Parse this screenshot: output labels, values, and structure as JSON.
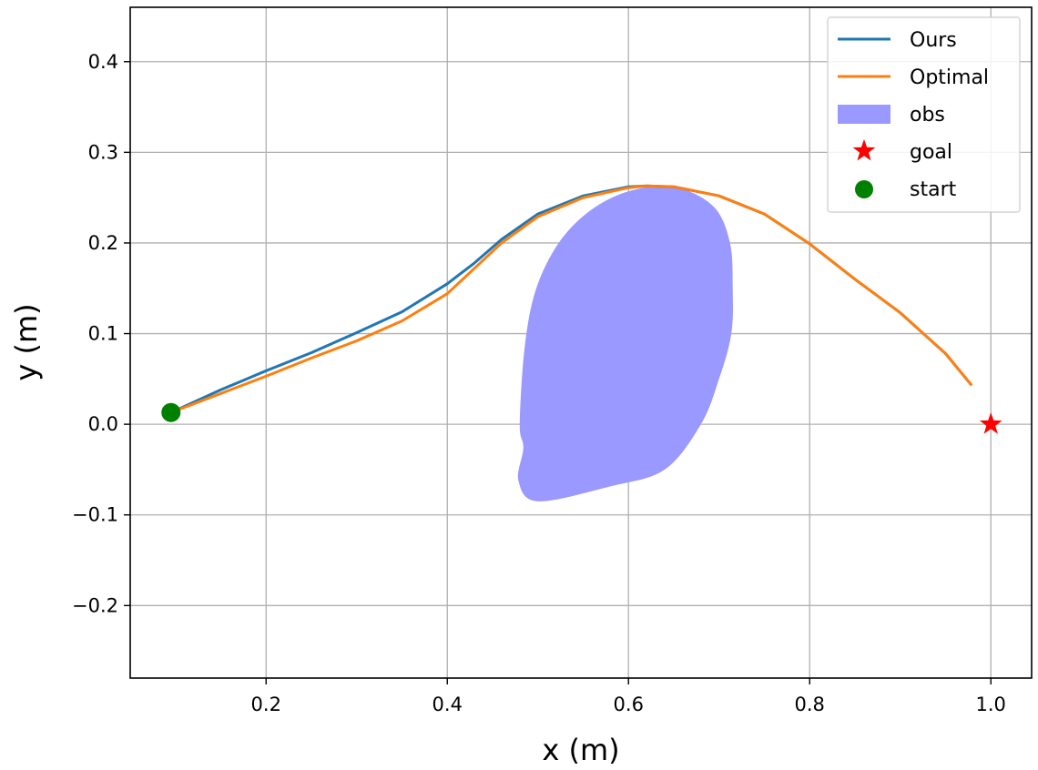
{
  "chart_data": {
    "type": "line",
    "xlabel": "x (m)",
    "ylabel": "y (m)",
    "xlim": [
      0.05,
      1.045
    ],
    "ylim": [
      -0.28,
      0.46
    ],
    "xticks": [
      0.2,
      0.4,
      0.6,
      0.8,
      1.0
    ],
    "xtick_labels": [
      "0.2",
      "0.4",
      "0.6",
      "0.8",
      "1.0"
    ],
    "yticks": [
      -0.2,
      -0.1,
      0.0,
      0.1,
      0.2,
      0.3,
      0.4
    ],
    "ytick_labels": [
      "−0.2",
      "−0.1",
      "0.0",
      "0.1",
      "0.2",
      "0.3",
      "0.4"
    ],
    "grid": true,
    "legend_position": "top-right",
    "series": [
      {
        "name": "Ours",
        "color": "#1f77b4",
        "points": [
          [
            0.095,
            0.013
          ],
          [
            0.15,
            0.038
          ],
          [
            0.2,
            0.059
          ],
          [
            0.25,
            0.079
          ],
          [
            0.3,
            0.101
          ],
          [
            0.35,
            0.124
          ],
          [
            0.4,
            0.155
          ],
          [
            0.43,
            0.178
          ],
          [
            0.46,
            0.204
          ],
          [
            0.5,
            0.232
          ],
          [
            0.55,
            0.252
          ],
          [
            0.6,
            0.262
          ],
          [
            0.62,
            0.263
          ],
          [
            0.65,
            0.262
          ],
          [
            0.7,
            0.252
          ],
          [
            0.75,
            0.232
          ],
          [
            0.8,
            0.199
          ],
          [
            0.85,
            0.16
          ],
          [
            0.9,
            0.123
          ],
          [
            0.95,
            0.078
          ],
          [
            0.978,
            0.044
          ]
        ]
      },
      {
        "name": "Optimal",
        "color": "#ff7f0e",
        "points": [
          [
            0.095,
            0.013
          ],
          [
            0.15,
            0.034
          ],
          [
            0.2,
            0.053
          ],
          [
            0.25,
            0.073
          ],
          [
            0.3,
            0.092
          ],
          [
            0.35,
            0.114
          ],
          [
            0.4,
            0.144
          ],
          [
            0.43,
            0.172
          ],
          [
            0.46,
            0.2
          ],
          [
            0.5,
            0.229
          ],
          [
            0.55,
            0.25
          ],
          [
            0.6,
            0.261
          ],
          [
            0.62,
            0.263
          ],
          [
            0.65,
            0.262
          ],
          [
            0.7,
            0.252
          ],
          [
            0.75,
            0.232
          ],
          [
            0.8,
            0.199
          ],
          [
            0.85,
            0.16
          ],
          [
            0.9,
            0.123
          ],
          [
            0.95,
            0.078
          ],
          [
            0.978,
            0.044
          ]
        ]
      }
    ],
    "obstacle": {
      "name": "obs",
      "color": "#9999ff",
      "boundary": [
        [
          0.48,
          0.0
        ],
        [
          0.4855,
          0.0855
        ],
        [
          0.498,
          0.1491
        ],
        [
          0.523,
          0.2
        ],
        [
          0.5575,
          0.2355
        ],
        [
          0.6,
          0.257
        ],
        [
          0.65,
          0.262
        ],
        [
          0.694,
          0.24
        ],
        [
          0.712,
          0.2
        ],
        [
          0.715,
          0.15
        ],
        [
          0.7135,
          0.1
        ],
        [
          0.7,
          0.05
        ],
        [
          0.68,
          0.0
        ],
        [
          0.64,
          -0.05
        ],
        [
          0.58,
          -0.0685
        ],
        [
          0.5,
          -0.085
        ],
        [
          0.4785,
          -0.062
        ],
        [
          0.484,
          -0.026
        ]
      ]
    },
    "markers": [
      {
        "name": "goal",
        "shape": "star",
        "color": "#ff0000",
        "x": 1.0,
        "y": 0.0
      },
      {
        "name": "start",
        "shape": "circle",
        "color": "#008000",
        "x": 0.095,
        "y": 0.013
      }
    ],
    "legend": [
      "Ours",
      "Optimal",
      "obs",
      "goal",
      "start"
    ]
  }
}
